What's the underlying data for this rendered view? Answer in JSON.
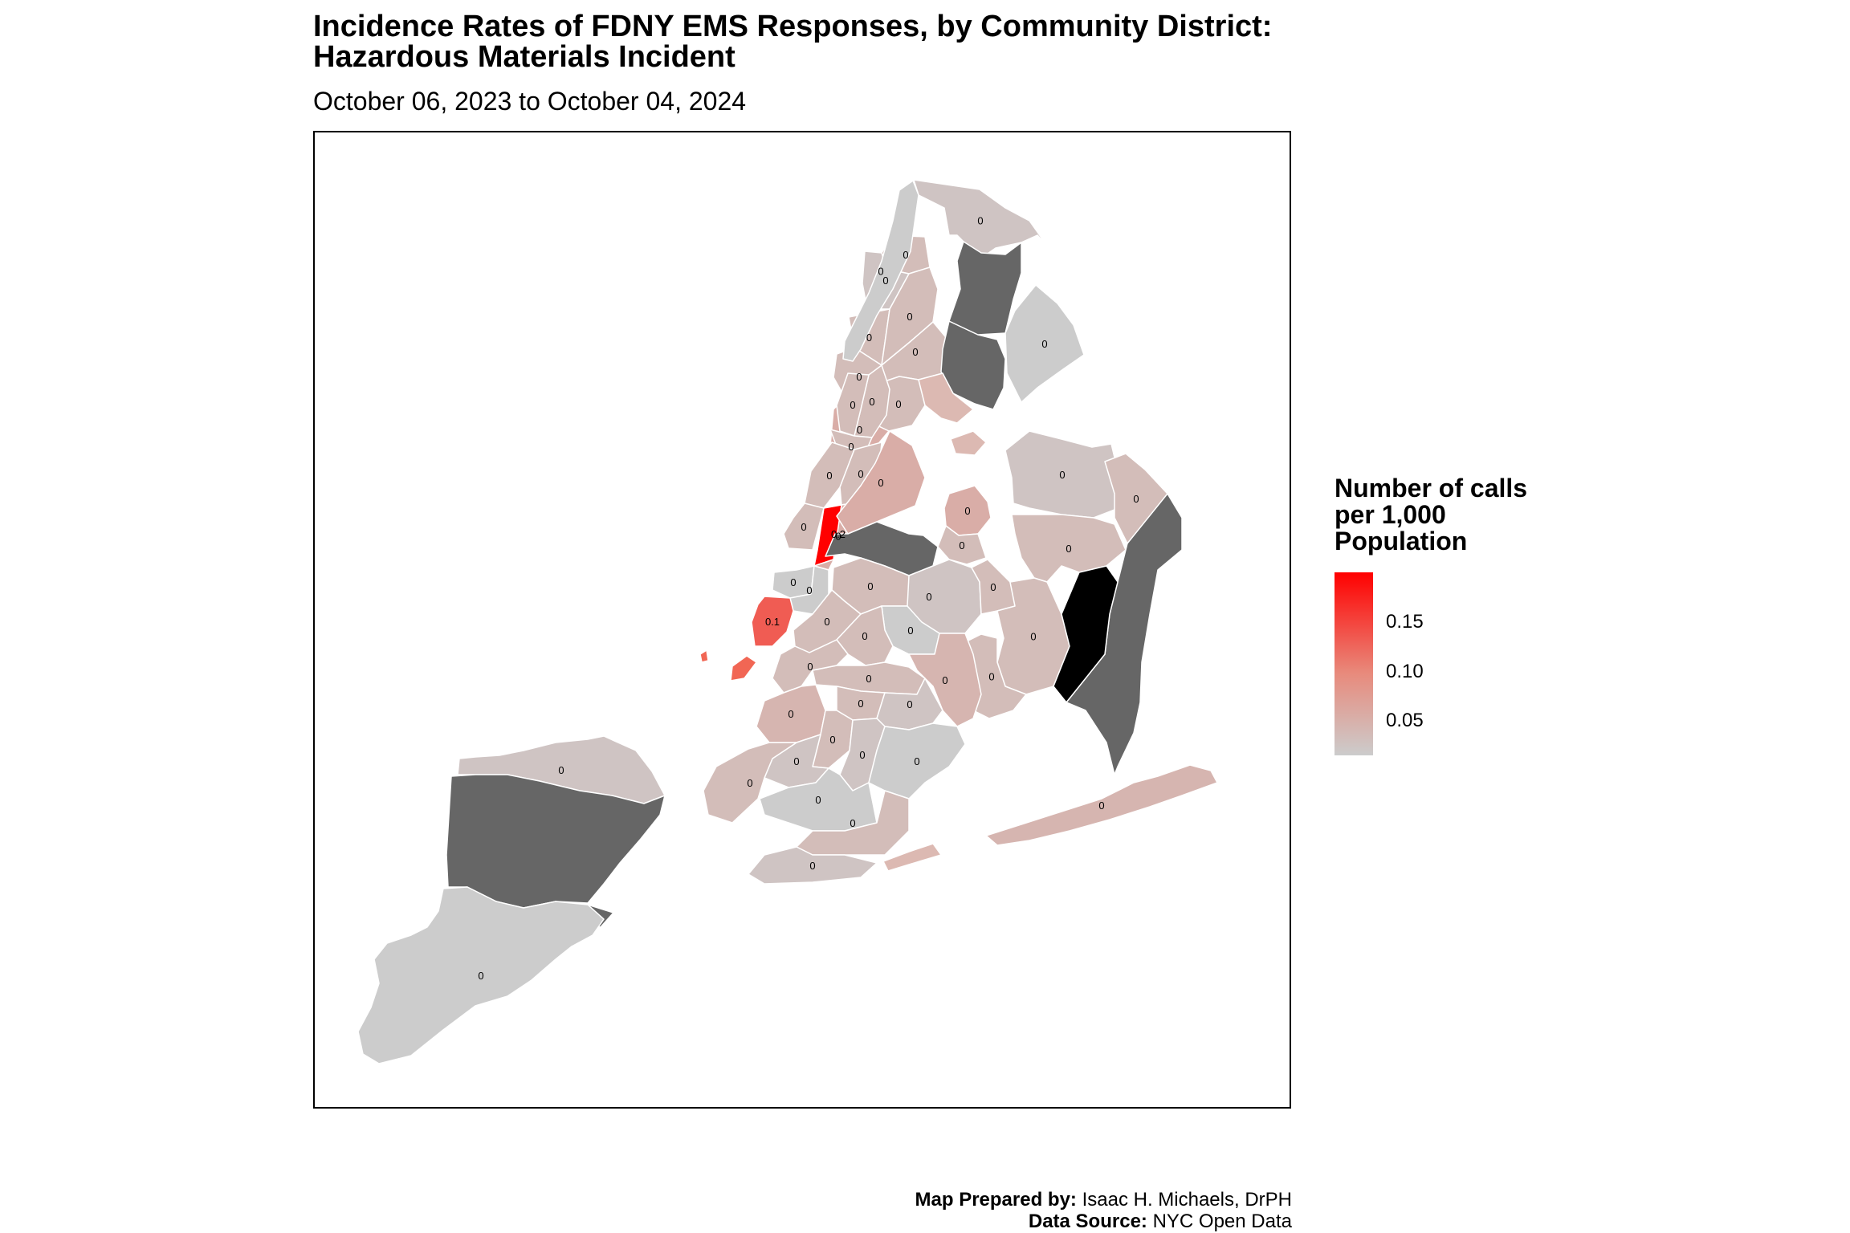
{
  "title_line1": "Incidence Rates of FDNY EMS Responses, by Community District:",
  "title_line2": "Hazardous Materials Incident",
  "subtitle": "October 06, 2023 to October 04, 2024",
  "legend": {
    "title_line1": "Number of calls",
    "title_line2": "per 1,000",
    "title_line3": "Population",
    "ticks": [
      "0.15",
      "0.10",
      "0.05"
    ],
    "color_high": "#ff0000",
    "color_low": "#cccccc",
    "color_missing": "#666666"
  },
  "footer": {
    "prepared_label": "Map Prepared by:",
    "prepared_value": " Isaac H. Michaels, DrPH",
    "source_label": "Data Source:",
    "source_value": " NYC Open Data"
  },
  "districts": [
    {
      "name": "manhattan-1",
      "label": "0.1",
      "value": 0.13
    },
    {
      "name": "manhattan-5",
      "label": "0.2",
      "value": 0.2
    },
    {
      "name": "manhattan-2",
      "label": "0",
      "value": 0.01
    },
    {
      "name": "manhattan-3",
      "label": "0",
      "value": 0.01
    },
    {
      "name": "manhattan-4",
      "label": "0",
      "value": 0.03
    },
    {
      "name": "manhattan-6",
      "label": "0",
      "value": 0.05
    },
    {
      "name": "manhattan-7",
      "label": "0",
      "value": 0.03
    },
    {
      "name": "manhattan-8",
      "label": "0",
      "value": 0.03
    },
    {
      "name": "manhattan-9",
      "label": "0",
      "value": 0.03
    },
    {
      "name": "manhattan-10",
      "label": "0",
      "value": 0.03
    },
    {
      "name": "manhattan-11",
      "label": "0",
      "value": 0.03
    },
    {
      "name": "manhattan-12",
      "label": "0",
      "value": 0.01
    },
    {
      "name": "bronx-1",
      "label": "0",
      "value": 0.05
    },
    {
      "name": "bronx-2",
      "label": "0",
      "value": 0.03
    },
    {
      "name": "bronx-3",
      "label": "0",
      "value": 0.03
    },
    {
      "name": "bronx-4",
      "label": "0",
      "value": 0.03
    },
    {
      "name": "bronx-5",
      "label": "0",
      "value": 0.03
    },
    {
      "name": "bronx-6",
      "label": "0",
      "value": 0.03
    },
    {
      "name": "bronx-7",
      "label": "0",
      "value": 0.03
    },
    {
      "name": "bronx-8",
      "label": "0",
      "value": 0.02
    },
    {
      "name": "bronx-10",
      "label": "0",
      "value": 0.01
    },
    {
      "name": "bronx-12",
      "label": "0",
      "value": 0.02
    },
    {
      "name": "queens-1",
      "label": "0",
      "value": 0.05
    },
    {
      "name": "queens-3",
      "label": "0",
      "value": 0.05
    },
    {
      "name": "queens-4",
      "label": "0",
      "value": 0.03
    },
    {
      "name": "queens-5",
      "label": "0",
      "value": 0.02
    },
    {
      "name": "queens-6",
      "label": "0",
      "value": 0.03
    },
    {
      "name": "queens-7",
      "label": "0",
      "value": 0.02
    },
    {
      "name": "queens-8",
      "label": "0",
      "value": 0.03
    },
    {
      "name": "queens-9",
      "label": "0",
      "value": 0.03
    },
    {
      "name": "queens-10",
      "label": "0",
      "value": 0.03
    },
    {
      "name": "queens-11",
      "label": "0",
      "value": 0.03
    },
    {
      "name": "queens-14",
      "label": "0",
      "value": 0.04
    },
    {
      "name": "brooklyn-1",
      "label": "0",
      "value": 0.03
    },
    {
      "name": "brooklyn-2",
      "label": "0",
      "value": 0.03
    },
    {
      "name": "brooklyn-3",
      "label": "0",
      "value": 0.03
    },
    {
      "name": "brooklyn-4",
      "label": "0",
      "value": 0.01
    },
    {
      "name": "brooklyn-5",
      "label": "0",
      "value": 0.04
    },
    {
      "name": "brooklyn-6",
      "label": "0",
      "value": 0.03
    },
    {
      "name": "brooklyn-7",
      "label": "0",
      "value": 0.04
    },
    {
      "name": "brooklyn-8",
      "label": "0",
      "value": 0.03
    },
    {
      "name": "brooklyn-9",
      "label": "0",
      "value": 0.03
    },
    {
      "name": "brooklyn-10",
      "label": "0",
      "value": 0.03
    },
    {
      "name": "brooklyn-11",
      "label": "0",
      "value": 0.02
    },
    {
      "name": "brooklyn-12",
      "label": "0",
      "value": 0.02
    },
    {
      "name": "brooklyn-13",
      "label": "0",
      "value": 0.02
    },
    {
      "name": "brooklyn-14",
      "label": "0",
      "value": 0.03
    },
    {
      "name": "brooklyn-15",
      "label": "0",
      "value": 0.01
    },
    {
      "name": "brooklyn-16",
      "label": "0",
      "value": 0.03
    },
    {
      "name": "brooklyn-17",
      "label": "0",
      "value": 0.02
    },
    {
      "name": "brooklyn-18",
      "label": "0",
      "value": 0.01
    },
    {
      "name": "staten-island-1",
      "label": "0",
      "value": 0.02
    },
    {
      "name": "staten-island-3",
      "label": "0",
      "value": 0.01
    }
  ]
}
